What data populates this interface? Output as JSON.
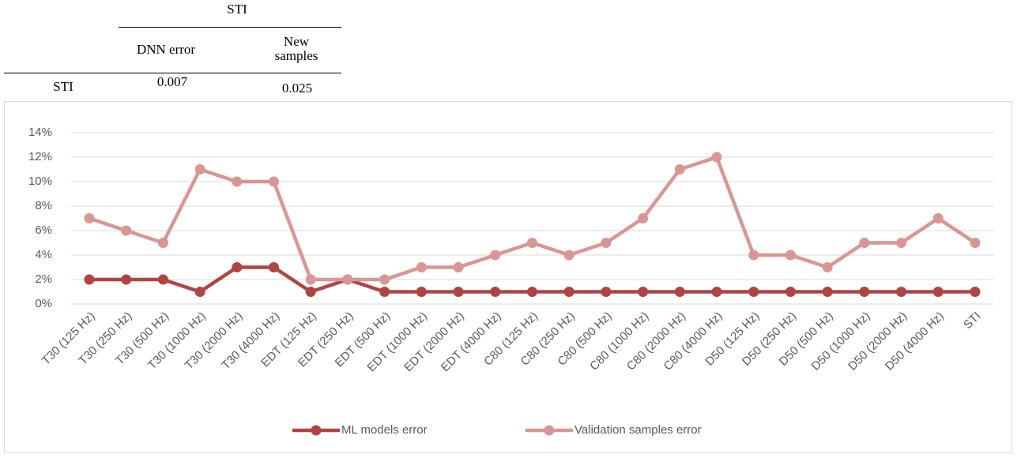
{
  "table": {
    "group_header": "STI",
    "columns": [
      "DNN error",
      "New samples"
    ],
    "rows": [
      [
        "STI",
        "0.007",
        "0.025"
      ]
    ]
  },
  "chart_data": {
    "type": "line",
    "categories": [
      "T30 (125 Hz)",
      "T30 (250 Hz)",
      "T30 (500 Hz)",
      "T30 (1000 Hz)",
      "T30 (2000 Hz)",
      "T30 (4000 Hz)",
      "EDT (125 Hz)",
      "EDT (250 Hz)",
      "EDT (500 Hz)",
      "EDT (1000 Hz)",
      "EDT (2000 Hz)",
      "EDT (4000 Hz)",
      "C80 (125 Hz)",
      "C80 (250 Hz)",
      "C80 (500 Hz)",
      "C80 (1000 Hz)",
      "C80 (2000 Hz)",
      "C80 (4000 Hz)",
      "D50 (125 Hz)",
      "D50 (250 Hz)",
      "D50 (500 Hz)",
      "D50 (1000 Hz)",
      "D50 (2000 Hz)",
      "D50 (4000 Hz)",
      "STI"
    ],
    "series": [
      {
        "name": "ML models error",
        "color": "#b04442",
        "values": [
          2,
          2,
          2,
          1,
          3,
          3,
          1,
          2,
          1,
          1,
          1,
          1,
          1,
          1,
          1,
          1,
          1,
          1,
          1,
          1,
          1,
          1,
          1,
          1,
          1
        ]
      },
      {
        "name": "Validation samples error",
        "color": "#d99694",
        "values": [
          7,
          6,
          5,
          11,
          10,
          10,
          2,
          2,
          2,
          3,
          3,
          4,
          5,
          4,
          5,
          7,
          11,
          12,
          4,
          4,
          3,
          5,
          5,
          7,
          5
        ]
      }
    ],
    "ylim": [
      0,
      14
    ],
    "yticks": [
      {
        "value": 0,
        "label": "0%"
      },
      {
        "value": 2,
        "label": "2%"
      },
      {
        "value": 4,
        "label": "4%"
      },
      {
        "value": 6,
        "label": "6%"
      },
      {
        "value": 8,
        "label": "8%"
      },
      {
        "value": 10,
        "label": "10%"
      },
      {
        "value": 12,
        "label": "12%"
      },
      {
        "value": 14,
        "label": "14%"
      }
    ],
    "grid": true,
    "legend": "bottom"
  }
}
